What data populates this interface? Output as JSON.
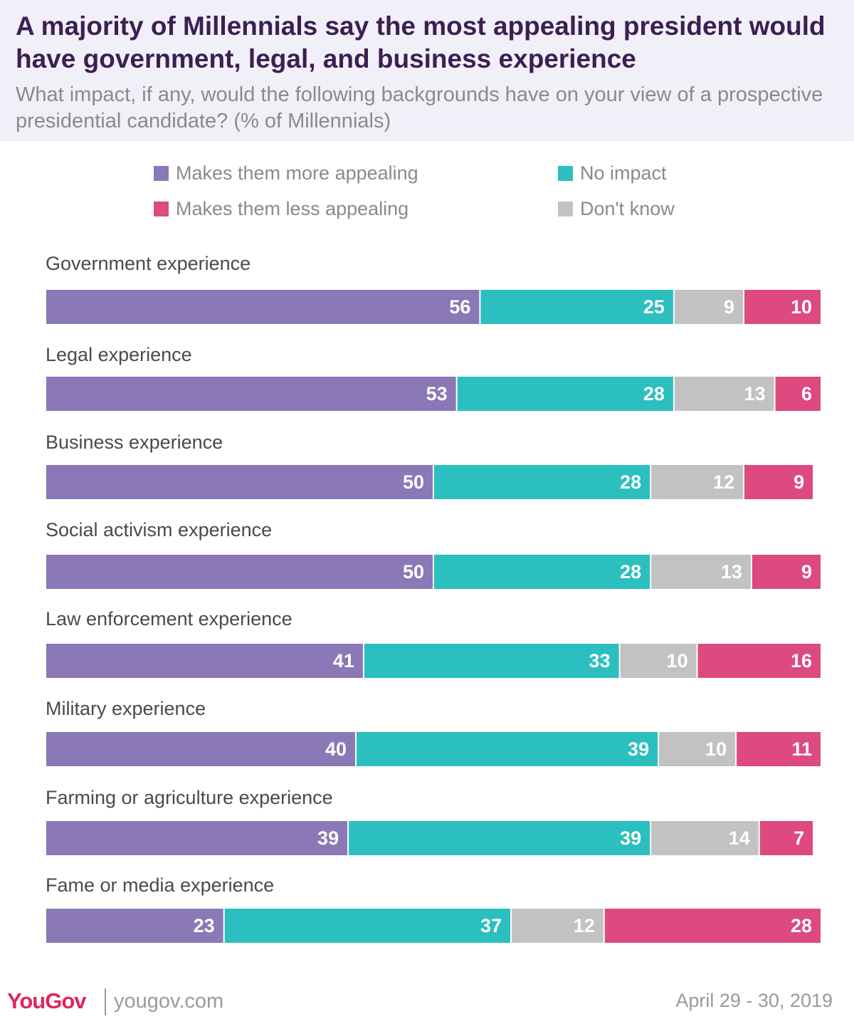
{
  "chart_data": {
    "type": "bar",
    "orientation": "horizontal",
    "stacked": true,
    "title": "A majority of Millennials say the most appealing president would have government, legal, and business experience",
    "subtitle": "What impact, if any, would the following backgrounds have on your view of a prospective presidential candidate? (% of Millennials)",
    "categories": [
      "Government experience",
      "Legal experience",
      "Business experience",
      "Social activism experience",
      "Law enforcement experience",
      "Military experience",
      "Farming or agriculture experience",
      "Fame or media experience"
    ],
    "series": [
      {
        "name": "Makes them more appealing",
        "color": "#8b78b6",
        "values": [
          56,
          53,
          50,
          50,
          41,
          40,
          39,
          23
        ]
      },
      {
        "name": "No impact",
        "color": "#2bbfbf",
        "values": [
          25,
          28,
          28,
          28,
          33,
          39,
          39,
          37
        ]
      },
      {
        "name": "Don't know",
        "color": "#c2c2c2",
        "values": [
          9,
          13,
          12,
          13,
          10,
          10,
          14,
          12
        ]
      },
      {
        "name": "Makes them less appealing",
        "color": "#dc4a7f",
        "values": [
          10,
          6,
          9,
          9,
          16,
          11,
          7,
          28
        ]
      }
    ],
    "xlim": [
      0,
      100
    ],
    "legend_order": [
      "Makes them more appealing",
      "No impact",
      "Makes them less appealing",
      "Don't know"
    ]
  },
  "footer": {
    "brand": "YouGov",
    "url": "yougov.com",
    "date": "April 29 - 30, 2019"
  }
}
